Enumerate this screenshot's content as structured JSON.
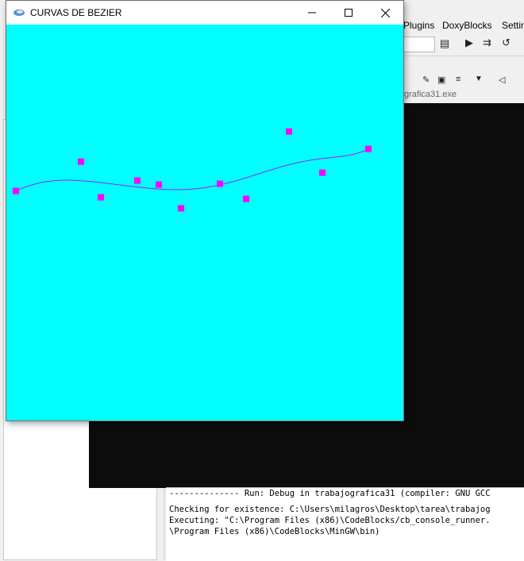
{
  "ide": {
    "menus": [
      "Plugins",
      "DoxyBlocks",
      "Settin"
    ],
    "console_tab_title": "grafica31.exe",
    "log_lines": [
      "-------------- Run: Debug in trabajografica31 (compiler: GNU GCC",
      "",
      "Checking for existence: C:\\Users\\milagros\\Desktop\\tarea\\trabajog",
      "Executing: \"C:\\Program Files (x86)\\CodeBlocks/cb_console_runner.",
      "\\Program Files (x86)\\CodeBlocks\\MinGW\\bin)"
    ],
    "colors": {
      "console_bg": "#0c0c0c",
      "panel_bg": "#f0f0f0"
    }
  },
  "window": {
    "title": "CURVAS DE BEZIER",
    "icons": {
      "app": "glut-app-icon",
      "minimize": "minimize-icon",
      "maximize": "maximize-icon",
      "close": "close-icon"
    }
  },
  "scene": {
    "background_color": "#00ffff",
    "point_color": "#ff00ff",
    "curve_color": "#a020f0"
  },
  "chart_data": {
    "type": "scatter",
    "title": "",
    "xlim": [
      0,
      500
    ],
    "ylim": [
      0,
      500
    ],
    "control_points": [
      {
        "x": 12,
        "y": 290
      },
      {
        "x": 94,
        "y": 327
      },
      {
        "x": 119,
        "y": 282
      },
      {
        "x": 165,
        "y": 303
      },
      {
        "x": 192,
        "y": 298
      },
      {
        "x": 220,
        "y": 268
      },
      {
        "x": 269,
        "y": 299
      },
      {
        "x": 302,
        "y": 280
      },
      {
        "x": 356,
        "y": 365
      },
      {
        "x": 398,
        "y": 313
      },
      {
        "x": 456,
        "y": 343
      }
    ],
    "curve": "bezier through control points"
  }
}
